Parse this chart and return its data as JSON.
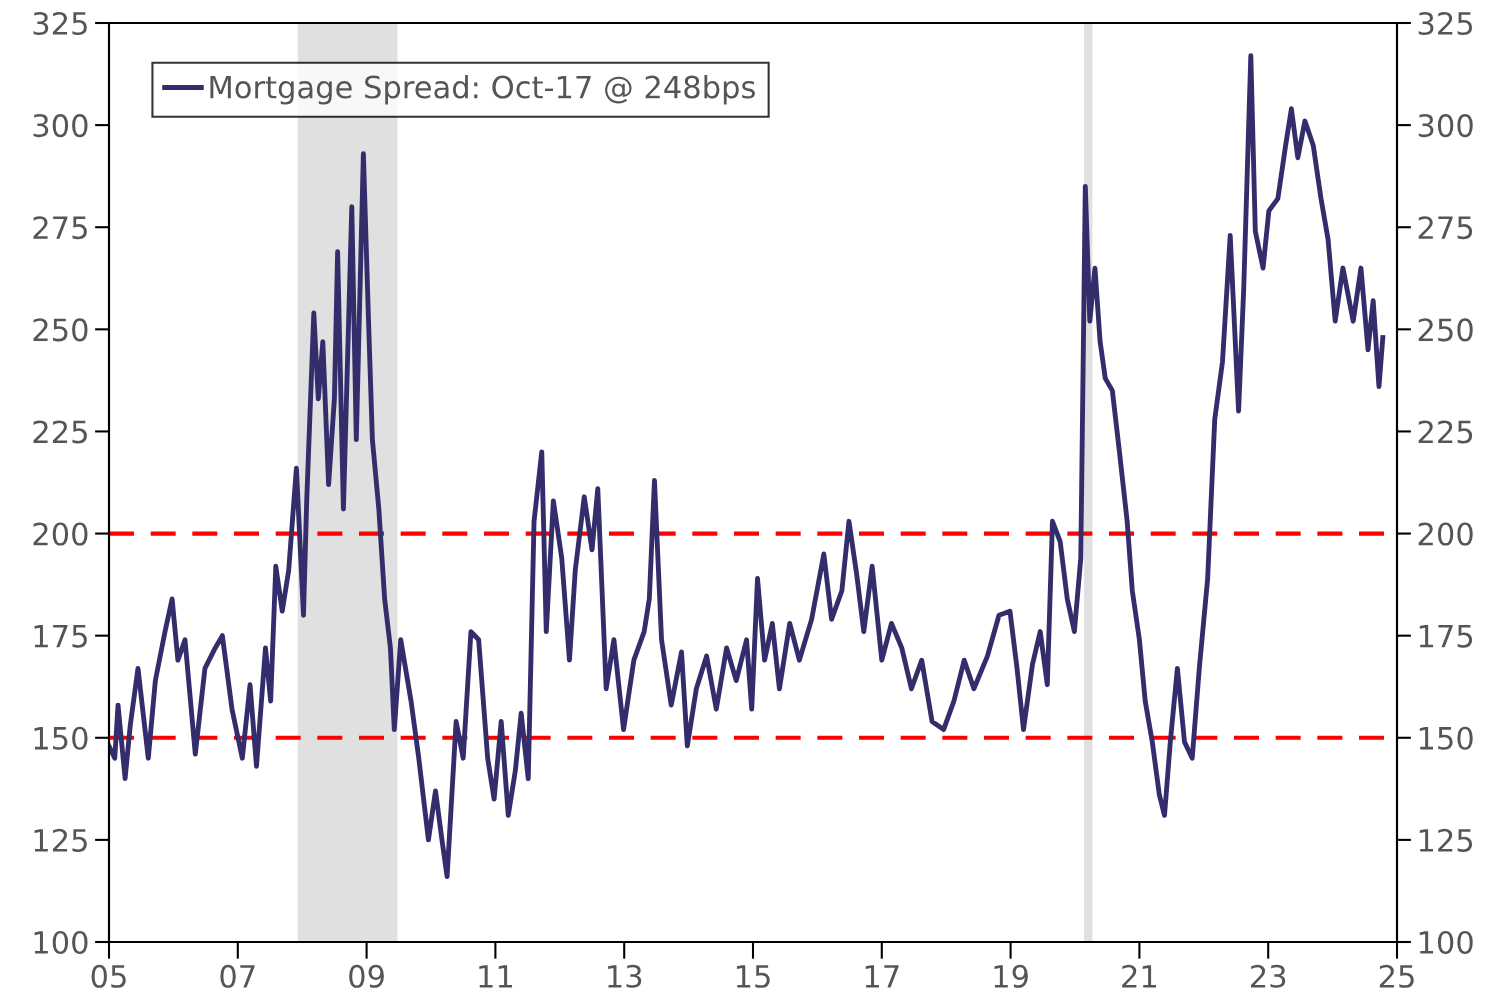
{
  "chart_data": {
    "type": "line",
    "x": [
      2005.0,
      2005.09,
      2005.14,
      2005.25,
      2005.33,
      2005.45,
      2005.61,
      2005.72,
      2005.87,
      2005.98,
      2006.07,
      2006.18,
      2006.34,
      2006.49,
      2006.65,
      2006.76,
      2006.91,
      2007.07,
      2007.19,
      2007.29,
      2007.43,
      2007.51,
      2007.59,
      2007.69,
      2007.79,
      2007.91,
      2008.02,
      2008.07,
      2008.18,
      2008.25,
      2008.32,
      2008.41,
      2008.5,
      2008.55,
      2008.64,
      2008.77,
      2008.84,
      2008.95,
      2009.03,
      2009.09,
      2009.19,
      2009.28,
      2009.37,
      2009.43,
      2009.53,
      2009.69,
      2009.81,
      2009.96,
      2010.07,
      2010.17,
      2010.25,
      2010.39,
      2010.5,
      2010.62,
      2010.74,
      2010.88,
      2010.98,
      2011.09,
      2011.2,
      2011.31,
      2011.4,
      2011.51,
      2011.6,
      2011.72,
      2011.79,
      2011.9,
      2012.03,
      2012.15,
      2012.24,
      2012.38,
      2012.5,
      2012.59,
      2012.72,
      2012.84,
      2012.99,
      2013.15,
      2013.31,
      2013.39,
      2013.47,
      2013.58,
      2013.73,
      2013.89,
      2013.98,
      2014.12,
      2014.28,
      2014.43,
      2014.59,
      2014.74,
      2014.9,
      2014.98,
      2015.07,
      2015.18,
      2015.3,
      2015.41,
      2015.57,
      2015.72,
      2015.91,
      2016.1,
      2016.22,
      2016.38,
      2016.49,
      2016.61,
      2016.72,
      2016.85,
      2017.0,
      2017.15,
      2017.31,
      2017.46,
      2017.62,
      2017.78,
      2017.96,
      2018.12,
      2018.28,
      2018.43,
      2018.64,
      2018.82,
      2018.99,
      2019.1,
      2019.2,
      2019.34,
      2019.46,
      2019.57,
      2019.65,
      2019.77,
      2019.88,
      2019.99,
      2020.09,
      2020.16,
      2020.23,
      2020.31,
      2020.39,
      2020.47,
      2020.58,
      2020.69,
      2020.81,
      2020.89,
      2021.0,
      2021.09,
      2021.2,
      2021.31,
      2021.39,
      2021.48,
      2021.59,
      2021.7,
      2021.82,
      2021.93,
      2022.06,
      2022.17,
      2022.29,
      2022.41,
      2022.54,
      2022.62,
      2022.73,
      2022.8,
      2022.92,
      2023.01,
      2023.15,
      2023.27,
      2023.36,
      2023.46,
      2023.57,
      2023.7,
      2023.82,
      2023.93,
      2024.04,
      2024.16,
      2024.32,
      2024.44,
      2024.55,
      2024.63,
      2024.72,
      2024.78
    ],
    "series": [
      {
        "name": "Mortgage Spread: Oct-17 @ 248bps",
        "color": "#332d6b",
        "values": [
          148,
          145,
          158,
          140,
          153,
          167,
          145,
          164,
          176,
          184,
          169,
          174,
          146,
          167,
          172,
          175,
          157,
          145,
          163,
          143,
          172,
          159,
          192,
          181,
          191,
          216,
          180,
          208,
          254,
          233,
          247,
          212,
          233,
          269,
          206,
          280,
          223,
          293,
          252,
          223,
          206,
          184,
          172,
          152,
          174,
          159,
          145,
          125,
          137,
          125,
          116,
          154,
          145,
          176,
          174,
          145,
          135,
          154,
          131,
          142,
          156,
          140,
          203,
          220,
          176,
          208,
          194,
          169,
          191,
          209,
          196,
          211,
          162,
          174,
          152,
          169,
          176,
          184,
          213,
          174,
          158,
          171,
          148,
          162,
          170,
          157,
          172,
          164,
          174,
          157,
          189,
          169,
          178,
          162,
          178,
          169,
          179,
          195,
          179,
          186,
          203,
          190,
          176,
          192,
          169,
          178,
          172,
          162,
          169,
          154,
          152,
          159,
          169,
          162,
          170,
          180,
          181,
          167,
          152,
          168,
          176,
          163,
          203,
          198,
          184,
          176,
          194,
          285,
          252,
          265,
          247,
          238,
          235,
          220,
          203,
          186,
          174,
          159,
          149,
          136,
          131,
          149,
          167,
          149,
          145,
          167,
          189,
          228,
          242,
          273,
          230,
          260,
          317,
          274,
          265,
          279,
          282,
          295,
          304,
          292,
          301,
          295,
          282,
          272,
          252,
          265,
          252,
          265,
          245,
          257,
          236,
          248
        ]
      }
    ],
    "xlim": [
      2005,
      2025
    ],
    "xticks": [
      {
        "value": 2005,
        "label": "05"
      },
      {
        "value": 2007,
        "label": "07"
      },
      {
        "value": 2009,
        "label": "09"
      },
      {
        "value": 2011,
        "label": "11"
      },
      {
        "value": 2013,
        "label": "13"
      },
      {
        "value": 2015,
        "label": "15"
      },
      {
        "value": 2017,
        "label": "17"
      },
      {
        "value": 2019,
        "label": "19"
      },
      {
        "value": 2021,
        "label": "21"
      },
      {
        "value": 2023,
        "label": "23"
      },
      {
        "value": 2025,
        "label": "25"
      }
    ],
    "ylim": [
      100,
      325
    ],
    "yticks": [
      100,
      125,
      150,
      175,
      200,
      225,
      250,
      275,
      300,
      325
    ],
    "y2lim": [
      100,
      325
    ],
    "y2ticks": [
      100,
      125,
      150,
      175,
      200,
      225,
      250,
      275,
      300,
      325
    ],
    "ref_lines": [
      {
        "axis": "y",
        "value": 150,
        "color": "#ff0000",
        "line_style": "dashed"
      },
      {
        "axis": "y",
        "value": 200,
        "color": "#ff0000",
        "line_style": "dashed"
      }
    ],
    "bands": [
      {
        "axis": "x",
        "from": 2007.93,
        "to": 2009.48,
        "color": "#e0e0e0"
      },
      {
        "axis": "x",
        "from": 2020.14,
        "to": 2020.27,
        "color": "#e0e0e0"
      }
    ],
    "legend": "top left",
    "grid": false,
    "marker": "none",
    "line_style": "solid"
  }
}
